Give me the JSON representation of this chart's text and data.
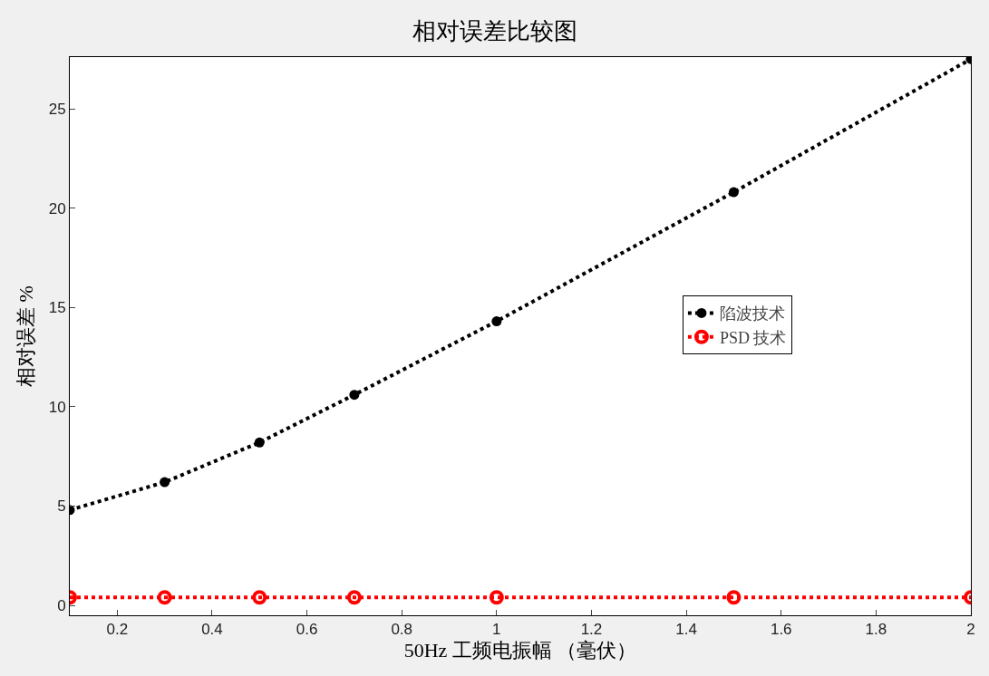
{
  "chart_data": {
    "type": "line",
    "title": "相对误差比较图",
    "xlabel": "50Hz 工频电振幅 （毫伏）",
    "ylabel": "相对误差 %",
    "x": [
      0.1,
      0.3,
      0.5,
      0.7,
      1,
      1.5,
      2
    ],
    "series": [
      {
        "name": "陷波技术",
        "color": "#000000",
        "values": [
          4.8,
          6.2,
          8.2,
          10.6,
          14.3,
          20.8,
          27.5
        ]
      },
      {
        "name": "PSD 技术",
        "color": "#ff0000",
        "values": [
          0.4,
          0.4,
          0.4,
          0.4,
          0.4,
          0.4,
          0.4
        ]
      }
    ],
    "xlim": [
      0.1,
      2
    ],
    "ylim": [
      -0.5,
      27.6
    ],
    "xticks": [
      0.2,
      0.4,
      0.6,
      0.8,
      1,
      1.2,
      1.4,
      1.6,
      1.8,
      2
    ],
    "yticks": [
      0,
      5,
      10,
      15,
      20,
      25
    ],
    "grid": false,
    "legend": "right",
    "marker": "circle",
    "line_style": "dotted"
  }
}
